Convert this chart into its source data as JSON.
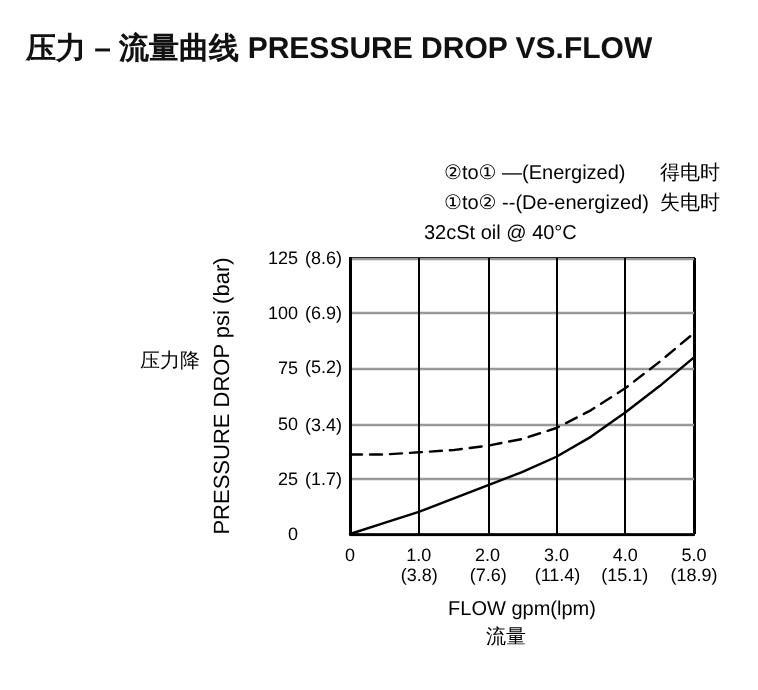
{
  "chart_data": {
    "type": "line",
    "title": "压力 – 流量曲线 PRESSURE DROP VS.FLOW",
    "xlabel": "FLOW gpm(lpm)",
    "ylabel": "PRESSURE DROP psi (bar)",
    "annotations": [
      "②to① —(Energized)",
      "得电时",
      "①to② --(De-energized)",
      "失电时",
      "32cSt oil @ 40°C",
      "压力降",
      "流量"
    ],
    "x": [
      0,
      0.5,
      1,
      1.5,
      2,
      2.5,
      3,
      3.5,
      4,
      4.5,
      5
    ],
    "series": [
      {
        "color": "#000000",
        "line_style": "solid",
        "values": [
          0,
          5,
          10,
          16,
          22,
          28,
          35,
          44,
          55,
          67,
          80
        ]
      },
      {
        "color": "#000000",
        "line_style": "dashed",
        "values": [
          36,
          36,
          37,
          38,
          40,
          43,
          48,
          56,
          66,
          78,
          91
        ]
      }
    ],
    "xlim": [
      0,
      5
    ],
    "xticks": [
      0,
      {
        "value": 1,
        "label": "1.0"
      },
      {
        "value": 2,
        "label": "2.0"
      },
      {
        "value": 3,
        "label": "3.0"
      },
      {
        "value": 4,
        "label": "4.0"
      },
      {
        "value": 5,
        "label": "5.0"
      }
    ],
    "x2lim": [
      0,
      18.9
    ],
    "x2ticks": [
      {
        "value": 3.8,
        "label": "(3.8)"
      },
      {
        "value": 7.6,
        "label": "(7.6)"
      },
      {
        "value": 11.4,
        "label": "(11.4)"
      },
      {
        "value": 15.1,
        "label": "(15.1)"
      },
      {
        "value": 18.9,
        "label": "(18.9)"
      }
    ],
    "ylim": [
      0,
      125
    ],
    "yticks": [
      0,
      25,
      50,
      75,
      100,
      125
    ],
    "y2lim": [
      0,
      8.6
    ],
    "y2ticks": [
      {
        "value": 1.7,
        "label": "(1.7)"
      },
      {
        "value": 3.4,
        "label": "(3.4)"
      },
      {
        "value": 5.2,
        "label": "(5.2)"
      },
      {
        "value": 6.9,
        "label": "(6.9)"
      },
      {
        "value": 8.6,
        "label": "(8.6)"
      }
    ],
    "grid": true,
    "marker": "none"
  }
}
